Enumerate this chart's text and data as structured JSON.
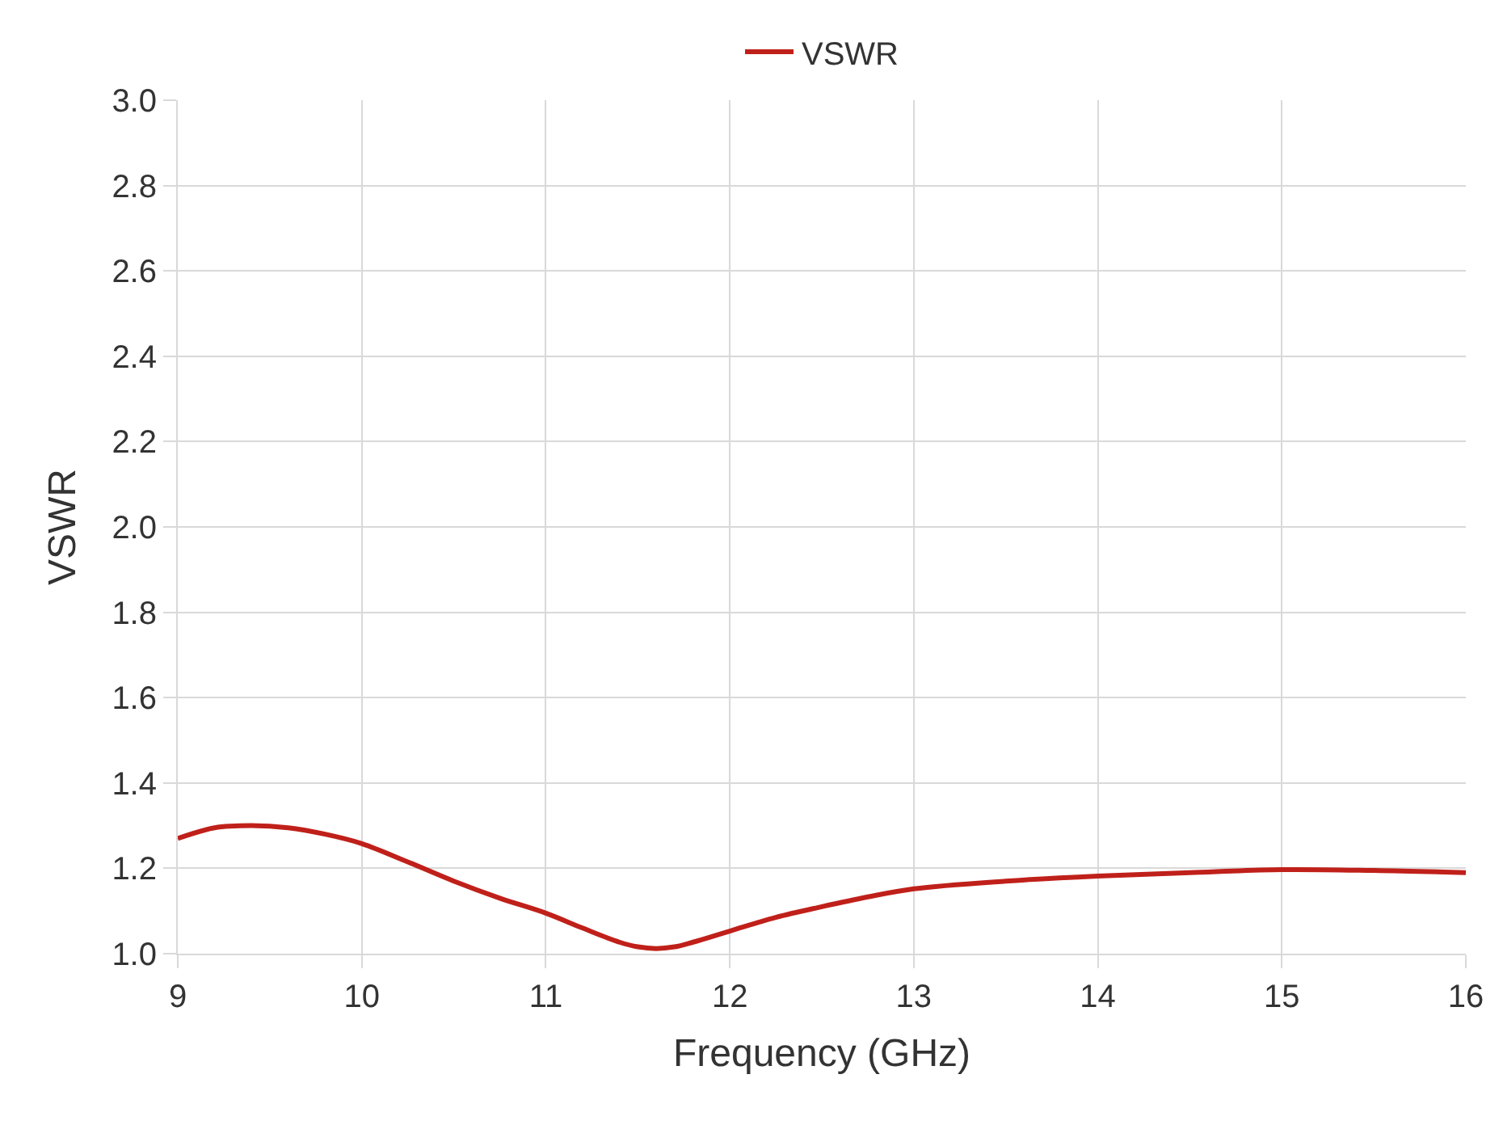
{
  "chart_data": {
    "type": "line",
    "xlabel": "Frequency (GHz)",
    "ylabel": "VSWR",
    "x": [
      9,
      9.2,
      9.4,
      9.6,
      9.8,
      10,
      10.25,
      10.5,
      10.75,
      11,
      11.2,
      11.4,
      11.5,
      11.6,
      11.7,
      11.8,
      12,
      12.25,
      12.5,
      12.75,
      13,
      13.5,
      14,
      14.5,
      15,
      15.5,
      16
    ],
    "series": [
      {
        "name": "VSWR",
        "color": "#c0201a",
        "values": [
          1.27,
          1.295,
          1.3,
          1.295,
          1.28,
          1.258,
          1.215,
          1.17,
          1.13,
          1.095,
          1.06,
          1.027,
          1.016,
          1.012,
          1.016,
          1.027,
          1.053,
          1.085,
          1.11,
          1.133,
          1.152,
          1.17,
          1.182,
          1.19,
          1.197,
          1.195,
          1.19
        ]
      }
    ],
    "xlim": [
      9,
      16
    ],
    "xticks": [
      9,
      10,
      11,
      12,
      13,
      14,
      15,
      16
    ],
    "ylim": [
      1.0,
      3.0
    ],
    "yticks": [
      {
        "value": 1.0,
        "label": "1.0"
      },
      {
        "value": 1.2,
        "label": "1.2"
      },
      {
        "value": 1.4,
        "label": "1.4"
      },
      {
        "value": 1.6,
        "label": "1.6"
      },
      {
        "value": 1.8,
        "label": "1.8"
      },
      {
        "value": 2.0,
        "label": "2.0"
      },
      {
        "value": 2.2,
        "label": "2.2"
      },
      {
        "value": 2.4,
        "label": "2.4"
      },
      {
        "value": 2.6,
        "label": "2.6"
      },
      {
        "value": 2.8,
        "label": "2.8"
      },
      {
        "value": 3.0,
        "label": "3.0"
      }
    ],
    "grid": true,
    "legend": "top",
    "marker": "none",
    "line_style": "solid"
  }
}
